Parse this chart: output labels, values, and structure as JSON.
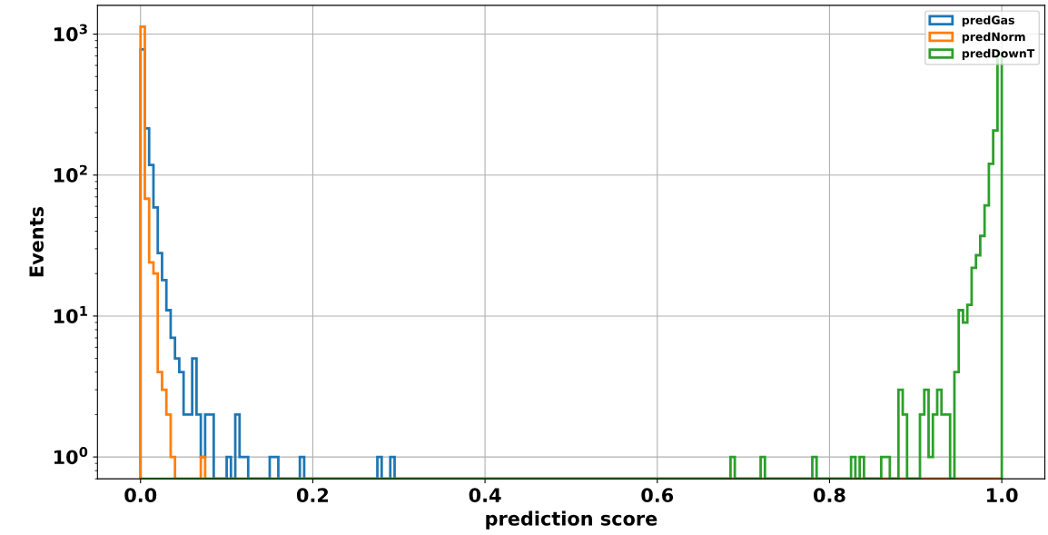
{
  "chart_data": {
    "type": "histogram",
    "xlabel": "prediction score",
    "ylabel": "Events",
    "log": "y",
    "grid": true,
    "legend": "top right",
    "xlim": [
      -0.05,
      1.05
    ],
    "xticks": [
      {
        "value": 0,
        "label": "0.0"
      },
      {
        "value": 0.2,
        "label": "0.2"
      },
      {
        "value": 0.4,
        "label": "0.4"
      },
      {
        "value": 0.6,
        "label": "0.6"
      },
      {
        "value": 0.8,
        "label": "0.8"
      },
      {
        "value": 1,
        "label": "1.0"
      }
    ],
    "ylim": [
      0.7,
      1600
    ],
    "yticks": [
      {
        "value": 1,
        "label": "10$^{0}$"
      },
      {
        "value": 10,
        "label": "10$^{1}$"
      },
      {
        "value": 100,
        "label": "10$^{2}$"
      },
      {
        "value": 1000,
        "label": "10$^{3}$"
      }
    ],
    "bins": [
      0,
      0.005,
      0.01,
      0.015,
      0.02,
      0.025,
      0.03,
      0.035,
      0.04,
      0.045,
      0.05,
      0.055,
      0.06,
      0.065,
      0.07,
      0.075,
      0.08,
      0.085,
      0.09,
      0.095,
      0.1,
      0.105,
      0.11,
      0.115,
      0.12,
      0.125,
      0.13,
      0.135,
      0.14,
      0.145,
      0.15,
      0.155,
      0.16,
      0.165,
      0.17,
      0.175,
      0.18,
      0.185,
      0.19,
      0.195,
      0.2,
      0.205,
      0.21,
      0.215,
      0.22,
      0.225,
      0.23,
      0.235,
      0.24,
      0.245,
      0.25,
      0.255,
      0.26,
      0.265,
      0.27,
      0.275,
      0.28,
      0.285,
      0.29,
      0.295,
      0.3,
      0.305,
      0.31,
      0.315,
      0.32,
      0.325,
      0.33,
      0.335,
      0.34,
      0.345,
      0.35,
      0.355,
      0.36,
      0.365,
      0.37,
      0.375,
      0.38,
      0.385,
      0.39,
      0.395,
      0.4,
      0.405,
      0.41,
      0.415,
      0.42,
      0.425,
      0.43,
      0.435,
      0.44,
      0.445,
      0.45,
      0.455,
      0.46,
      0.465,
      0.47,
      0.475,
      0.48,
      0.485,
      0.49,
      0.495,
      0.5,
      0.505,
      0.51,
      0.515,
      0.52,
      0.525,
      0.53,
      0.535,
      0.54,
      0.545,
      0.55,
      0.555,
      0.56,
      0.565,
      0.57,
      0.575,
      0.58,
      0.585,
      0.59,
      0.595,
      0.6,
      0.605,
      0.61,
      0.615,
      0.62,
      0.625,
      0.63,
      0.635,
      0.64,
      0.645,
      0.65,
      0.655,
      0.66,
      0.665,
      0.67,
      0.675,
      0.68,
      0.685,
      0.69,
      0.695,
      0.7,
      0.705,
      0.71,
      0.715,
      0.72,
      0.725,
      0.73,
      0.735,
      0.74,
      0.745,
      0.75,
      0.755,
      0.76,
      0.765,
      0.77,
      0.775,
      0.78,
      0.785,
      0.79,
      0.795,
      0.8,
      0.805,
      0.81,
      0.815,
      0.82,
      0.825,
      0.83,
      0.835,
      0.84,
      0.845,
      0.85,
      0.855,
      0.86,
      0.865,
      0.87,
      0.875,
      0.88,
      0.885,
      0.89,
      0.895,
      0.9,
      0.905,
      0.91,
      0.915,
      0.92,
      0.925,
      0.93,
      0.935,
      0.94,
      0.945,
      0.95,
      0.955,
      0.96,
      0.965,
      0.97,
      0.975,
      0.98,
      0.985,
      0.99,
      0.995,
      1.0
    ],
    "series": [
      {
        "name": "predGas",
        "color": "#1f77b4",
        "values": [
          780,
          214,
          118,
          59,
          28,
          18,
          11,
          7,
          5,
          4,
          2,
          2,
          5,
          2,
          1,
          2,
          2,
          null,
          null,
          null,
          1,
          null,
          2,
          1,
          1,
          null,
          null,
          null,
          null,
          null,
          1,
          1,
          null,
          null,
          null,
          null,
          null,
          1,
          null,
          null,
          null,
          null,
          null,
          null,
          null,
          null,
          null,
          null,
          null,
          null,
          null,
          null,
          null,
          null,
          null,
          1,
          null,
          null,
          1,
          null,
          null,
          null,
          null,
          null,
          null,
          null,
          null,
          null,
          null,
          null,
          null,
          null,
          null,
          null,
          null,
          null,
          null,
          null,
          null,
          null,
          null,
          null,
          null,
          null,
          null,
          null,
          null,
          null,
          null,
          null,
          null,
          null,
          null,
          null,
          null,
          null,
          null,
          null,
          null,
          null,
          null,
          null,
          null,
          null,
          null,
          null,
          null,
          null,
          null,
          null,
          null,
          null,
          null,
          null,
          null,
          null,
          null,
          null,
          null,
          null,
          null,
          null,
          null,
          null,
          null,
          null,
          null,
          null,
          null,
          null,
          null,
          null,
          null,
          null,
          null,
          null,
          null,
          null,
          null,
          null,
          null,
          null,
          null,
          null,
          null,
          null,
          null,
          null,
          null,
          null,
          null,
          null,
          null,
          null,
          null,
          null,
          null,
          null,
          null,
          null,
          null,
          null,
          null,
          null,
          null,
          null,
          null,
          null,
          null,
          null,
          null,
          null,
          null,
          null,
          null,
          null,
          null,
          null,
          null,
          null,
          null,
          null,
          null,
          null,
          null,
          null,
          null,
          null,
          null,
          null,
          null,
          null,
          null,
          null,
          null,
          null,
          null,
          null,
          null,
          null
        ]
      },
      {
        "name": "predNorm",
        "color": "#ff7f0e",
        "values": [
          1130,
          68,
          24,
          20,
          4,
          3,
          2,
          1,
          null,
          null,
          null,
          null,
          null,
          null,
          1,
          null,
          null,
          null,
          null,
          null,
          null,
          null,
          null,
          null,
          null,
          null,
          null,
          null,
          null,
          null,
          null,
          null,
          null,
          null,
          null,
          null,
          null,
          null,
          null,
          null,
          null,
          null,
          null,
          null,
          null,
          null,
          null,
          null,
          null,
          null,
          null,
          null,
          null,
          null,
          null,
          null,
          null,
          null,
          null,
          null,
          null,
          null,
          null,
          null,
          null,
          null,
          null,
          null,
          null,
          null,
          null,
          null,
          null,
          null,
          null,
          null,
          null,
          null,
          null,
          null,
          null,
          null,
          null,
          null,
          null,
          null,
          null,
          null,
          null,
          null,
          null,
          null,
          null,
          null,
          null,
          null,
          null,
          null,
          null,
          null,
          null,
          null,
          null,
          null,
          null,
          null,
          null,
          null,
          null,
          null,
          null,
          null,
          null,
          null,
          null,
          null,
          null,
          null,
          null,
          null,
          null,
          null,
          null,
          null,
          null,
          null,
          null,
          null,
          null,
          null,
          null,
          null,
          null,
          null,
          null,
          null,
          null,
          null,
          null,
          null,
          null,
          null,
          null,
          null,
          null,
          null,
          null,
          null,
          null,
          null,
          null,
          null,
          null,
          null,
          null,
          null,
          null,
          null,
          null,
          null,
          null,
          null,
          null,
          null,
          null,
          null,
          null,
          null,
          null,
          null,
          null,
          null,
          null,
          null,
          null,
          null,
          null,
          null,
          null,
          null,
          null,
          null,
          null,
          null,
          null,
          null,
          null,
          null,
          null,
          null,
          null,
          null,
          null,
          null,
          null,
          null,
          null,
          null,
          null,
          null
        ]
      },
      {
        "name": "predDownT",
        "color": "#2ca02c",
        "values": [
          null,
          null,
          null,
          null,
          null,
          null,
          null,
          null,
          null,
          null,
          null,
          null,
          null,
          null,
          null,
          null,
          null,
          null,
          null,
          null,
          null,
          null,
          null,
          null,
          null,
          null,
          null,
          null,
          null,
          null,
          null,
          null,
          null,
          null,
          null,
          null,
          null,
          null,
          null,
          null,
          null,
          null,
          null,
          null,
          null,
          null,
          null,
          null,
          null,
          null,
          null,
          null,
          null,
          null,
          null,
          null,
          null,
          null,
          null,
          null,
          null,
          null,
          null,
          null,
          null,
          null,
          null,
          null,
          null,
          null,
          null,
          null,
          null,
          null,
          null,
          null,
          null,
          null,
          null,
          null,
          null,
          null,
          null,
          null,
          null,
          null,
          null,
          null,
          null,
          null,
          null,
          null,
          null,
          null,
          null,
          null,
          null,
          null,
          null,
          null,
          null,
          null,
          null,
          null,
          null,
          null,
          null,
          null,
          null,
          null,
          null,
          null,
          null,
          null,
          null,
          null,
          null,
          null,
          null,
          null,
          null,
          null,
          null,
          null,
          null,
          null,
          null,
          null,
          null,
          null,
          null,
          null,
          null,
          null,
          null,
          null,
          null,
          1,
          null,
          null,
          null,
          null,
          null,
          null,
          1,
          null,
          null,
          null,
          null,
          null,
          null,
          null,
          null,
          null,
          null,
          null,
          1,
          null,
          null,
          null,
          null,
          null,
          null,
          null,
          null,
          1,
          null,
          1,
          null,
          null,
          null,
          null,
          1,
          1,
          null,
          null,
          3,
          2,
          null,
          null,
          null,
          2,
          3,
          1,
          2,
          3,
          2,
          2,
          null,
          4,
          11,
          9,
          12,
          22,
          27,
          37,
          61,
          120,
          207,
          735
        ]
      }
    ]
  }
}
